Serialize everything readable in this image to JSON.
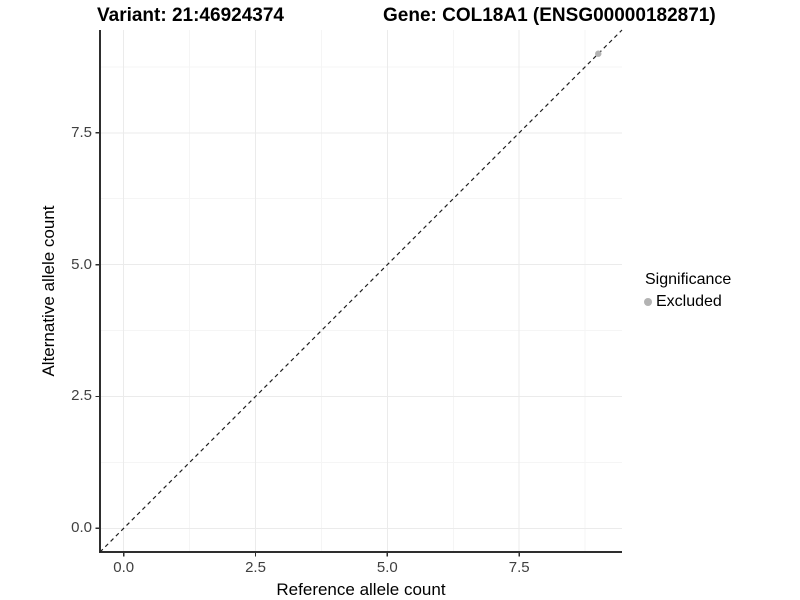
{
  "header": {
    "title_left": "Variant: 21:46924374",
    "title_right": "Gene: COL18A1 (ENSG00000182871)"
  },
  "chart_data": {
    "type": "scatter",
    "xlabel": "Reference allele count",
    "ylabel": "Alternative allele count",
    "xlim": [
      -0.45,
      9.45
    ],
    "ylim": [
      -0.45,
      9.45
    ],
    "x_ticks": [
      0,
      2.5,
      5,
      7.5
    ],
    "x_tick_labels": [
      "0.0",
      "2.5",
      "5.0",
      "7.5"
    ],
    "y_ticks": [
      0,
      2.5,
      5,
      7.5
    ],
    "y_tick_labels": [
      "0.0",
      "2.5",
      "5.0",
      "7.5"
    ],
    "minor_ticks": [
      1.25,
      3.75,
      6.25,
      8.75
    ],
    "grid": "major+minor",
    "points": [
      {
        "x": 9,
        "y": 9,
        "series": "Excluded"
      }
    ],
    "reference_line": {
      "type": "identity",
      "slope": 1,
      "intercept": 0,
      "style": "dashed"
    },
    "legend": {
      "title": "Significance",
      "position": "right",
      "entries": [
        {
          "label": "Excluded",
          "color": "#b3b3b3",
          "marker": "circle"
        }
      ]
    }
  },
  "colors": {
    "background": "#ffffff",
    "grid_major": "#ebebeb",
    "grid_minor": "#f5f5f5",
    "axis_line": "#2e2e2e",
    "tick_label": "#404040",
    "text": "#000000",
    "dashed_line": "#1f1f1f",
    "excluded_point": "#b3b3b3"
  }
}
